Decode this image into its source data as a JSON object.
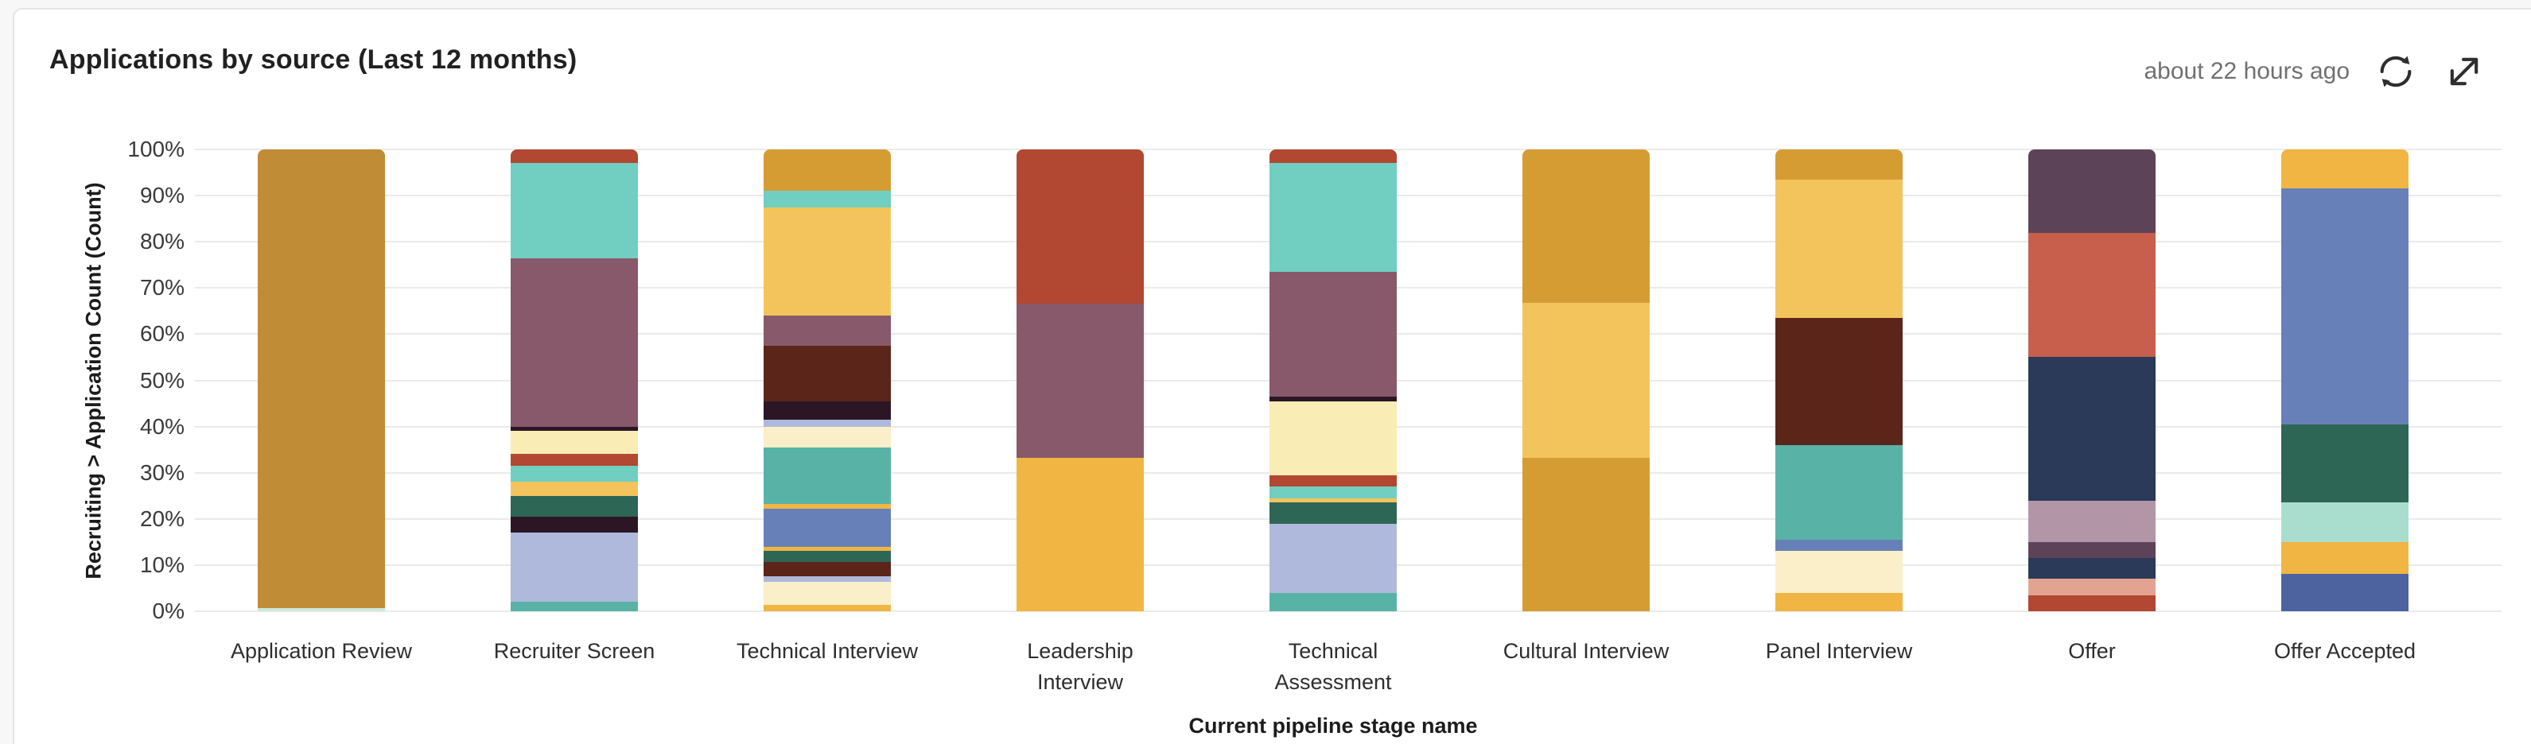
{
  "header": {
    "title": "Applications by source (Last 12 months)",
    "last_updated": "about 22 hours ago"
  },
  "colors": {
    "page_bg": "#F7F7F8",
    "card_bg": "#FFFFFF",
    "card_border": "#E4E4E4",
    "gridline": "#EAEAEA",
    "title_text": "#212121",
    "muted_text": "#707070",
    "axis_text": "#3A3A3A",
    "icon": "#2E2E2E"
  },
  "chart_data": {
    "type": "bar",
    "stacked": true,
    "units": "percent of total per stage",
    "title": "Applications by source (Last 12 months)",
    "xlabel": "Current pipeline stage name",
    "ylabel": "Recruiting > Application Count (Count)",
    "ylim": [
      0,
      100
    ],
    "yticks": [
      "0%",
      "10%",
      "20%",
      "30%",
      "40%",
      "50%",
      "60%",
      "70%",
      "80%",
      "90%",
      "100%"
    ],
    "grid": true,
    "legend": "none",
    "categories": [
      "Application Review",
      "Recruiter Screen",
      "Technical Interview",
      "Leadership Interview",
      "Technical Assessment",
      "Cultural Interview",
      "Panel Interview",
      "Offer",
      "Offer Accepted"
    ],
    "palette": {
      "gold_mustard": "#C18C36",
      "gold_dark": "#D69C34",
      "amber_light": "#F4C45C",
      "amber_med": "#F0B542",
      "cream": "#F9ECB5",
      "cream_light": "#FAEFC8",
      "red_rust": "#B24732",
      "salmon": "#C75F4C",
      "salmon_light": "#E2A491",
      "maroon": "#5B2519",
      "mauve": "#87596B",
      "mauve_light": "#B296A7",
      "plum": "#5D4358",
      "dark_purple": "#2C1626",
      "teal_light": "#70CFC0",
      "teal_med": "#58B3A6",
      "green_dark": "#2E6656",
      "mint": "#A9DECE",
      "mint_pale": "#CDE8D8",
      "navy": "#2A3A58",
      "periwinkle_light": "#AFB9DC",
      "blue_med": "#6780B8",
      "blue_dark": "#4C63A0"
    },
    "bars": [
      {
        "category": "Application Review",
        "label_lines": [
          "Application Review"
        ],
        "segments_top_to_bottom": [
          [
            "gold_mustard",
            99.3
          ],
          [
            "mint_pale",
            0.7
          ]
        ]
      },
      {
        "category": "Recruiter Screen",
        "label_lines": [
          "Recruiter Screen"
        ],
        "segments_top_to_bottom": [
          [
            "red_rust",
            3
          ],
          [
            "teal_light",
            20.5
          ],
          [
            "mauve",
            36.5
          ],
          [
            "dark_purple",
            1
          ],
          [
            "cream",
            5
          ],
          [
            "red_rust",
            2.5
          ],
          [
            "teal_light",
            3.5
          ],
          [
            "amber_light",
            3
          ],
          [
            "green_dark",
            4.5
          ],
          [
            "dark_purple",
            3.5
          ],
          [
            "periwinkle_light",
            15
          ],
          [
            "teal_med",
            2
          ]
        ]
      },
      {
        "category": "Technical Interview",
        "label_lines": [
          "Technical Interview"
        ],
        "segments_top_to_bottom": [
          [
            "gold_dark",
            9
          ],
          [
            "teal_light",
            3.5
          ],
          [
            "amber_light",
            23.5
          ],
          [
            "mauve",
            6.5
          ],
          [
            "maroon",
            12
          ],
          [
            "dark_purple",
            4
          ],
          [
            "periwinkle_light",
            1.5
          ],
          [
            "cream_light",
            4.5
          ],
          [
            "teal_med",
            12.3
          ],
          [
            "amber_med",
            1
          ],
          [
            "blue_med",
            8.2
          ],
          [
            "amber_med",
            1
          ],
          [
            "green_dark",
            2.4
          ],
          [
            "maroon",
            3.1
          ],
          [
            "periwinkle_light",
            1.2
          ],
          [
            "cream_light",
            4.9
          ],
          [
            "amber_med",
            1.4
          ]
        ]
      },
      {
        "category": "Leadership Interview",
        "label_lines": [
          "Leadership",
          "Interview"
        ],
        "segments_top_to_bottom": [
          [
            "red_rust",
            33.4
          ],
          [
            "mauve",
            33.3
          ],
          [
            "amber_med",
            33.3
          ]
        ]
      },
      {
        "category": "Technical Assessment",
        "label_lines": [
          "Technical",
          "Assessment"
        ],
        "segments_top_to_bottom": [
          [
            "red_rust",
            3
          ],
          [
            "teal_light",
            23.5
          ],
          [
            "mauve",
            27
          ],
          [
            "dark_purple",
            1
          ],
          [
            "cream",
            16
          ],
          [
            "red_rust",
            2.5
          ],
          [
            "teal_light",
            2.5
          ],
          [
            "amber_light",
            1
          ],
          [
            "green_dark",
            4.5
          ],
          [
            "periwinkle_light",
            15
          ],
          [
            "teal_med",
            4
          ]
        ]
      },
      {
        "category": "Cultural Interview",
        "label_lines": [
          "Cultural Interview"
        ],
        "segments_top_to_bottom": [
          [
            "gold_dark",
            33.3
          ],
          [
            "amber_light",
            33.4
          ],
          [
            "gold_dark",
            33.3
          ]
        ]
      },
      {
        "category": "Panel Interview",
        "label_lines": [
          "Panel Interview"
        ],
        "segments_top_to_bottom": [
          [
            "gold_dark",
            6.5
          ],
          [
            "amber_light",
            30
          ],
          [
            "maroon",
            27.5
          ],
          [
            "teal_med",
            20.5
          ],
          [
            "blue_med",
            2.5
          ],
          [
            "cream_light",
            9
          ],
          [
            "amber_med",
            4
          ]
        ]
      },
      {
        "category": "Offer",
        "label_lines": [
          "Offer"
        ],
        "segments_top_to_bottom": [
          [
            "plum",
            18
          ],
          [
            "salmon",
            27
          ],
          [
            "navy",
            31
          ],
          [
            "mauve_light",
            9
          ],
          [
            "plum",
            3.5
          ],
          [
            "navy",
            4.5
          ],
          [
            "salmon_light",
            3.5
          ],
          [
            "red_rust",
            3.5
          ]
        ]
      },
      {
        "category": "Offer Accepted",
        "label_lines": [
          "Offer Accepted"
        ],
        "segments_top_to_bottom": [
          [
            "amber_med",
            8.5
          ],
          [
            "blue_med",
            51
          ],
          [
            "green_dark",
            17
          ],
          [
            "mint",
            8.5
          ],
          [
            "amber_med",
            7
          ],
          [
            "blue_dark",
            8
          ]
        ]
      }
    ]
  }
}
